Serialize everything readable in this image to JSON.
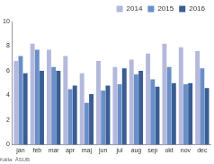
{
  "chart_data": {
    "type": "bar",
    "categories": [
      "jan",
      "feb",
      "mar",
      "apr",
      "maj",
      "jun",
      "jul",
      "aug",
      "sep",
      "okt",
      "nov",
      "dec"
    ],
    "series": [
      {
        "name": "2014",
        "color": "#b4b9dc",
        "values": [
          6.8,
          8.2,
          7.7,
          7.2,
          5.8,
          6.8,
          6.3,
          6.9,
          7.4,
          8.2,
          7.9,
          7.6
        ]
      },
      {
        "name": "2015",
        "color": "#6a8fc8",
        "values": [
          7.2,
          7.7,
          6.3,
          4.5,
          3.4,
          4.4,
          4.9,
          5.7,
          5.3,
          6.3,
          4.9,
          6.2
        ]
      },
      {
        "name": "2016",
        "color": "#3a5d93",
        "values": [
          5.8,
          6.0,
          6.0,
          4.8,
          4.1,
          4.8,
          6.2,
          6.0,
          4.7,
          5.0,
          5.0,
          4.6
        ]
      }
    ],
    "ylim": [
      0,
      10
    ],
    "yticks": [
      0,
      2,
      4,
      6,
      8,
      10
    ],
    "grid": false,
    "legend": "top-right",
    "source": "Källa: ÅSUB"
  }
}
